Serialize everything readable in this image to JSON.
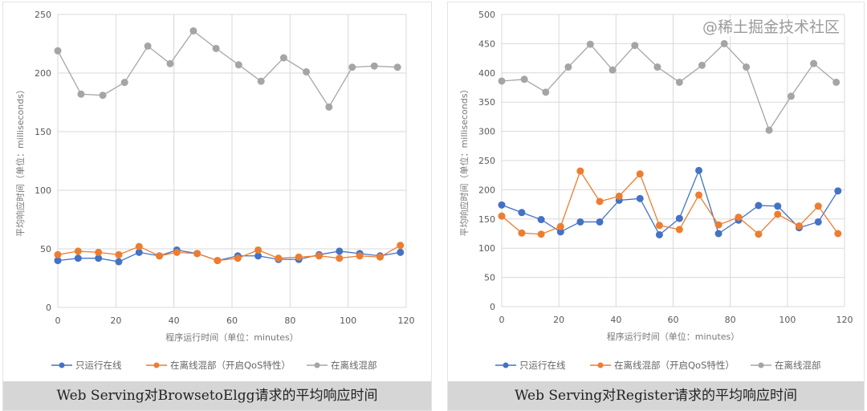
{
  "chart_data": [
    {
      "type": "line",
      "title": "Web Serving对BrowsetoElgg请求的平均响应时间",
      "xlabel": "程序运行时间（单位：minutes）",
      "ylabel": "平均响应时间（单位：milliseconds）",
      "xlim": [
        0,
        120
      ],
      "ylim": [
        0,
        250
      ],
      "xticks": [
        0,
        20,
        40,
        60,
        80,
        100,
        120
      ],
      "yticks": [
        0,
        50,
        100,
        150,
        200,
        250
      ],
      "grid": true,
      "legend": "bottom",
      "series": [
        {
          "name": "只运行在线",
          "color": "#4472c4",
          "x": [
            0,
            7,
            14,
            21,
            28,
            35,
            41,
            48,
            55,
            62,
            69,
            76,
            83,
            90,
            97,
            104,
            111,
            118
          ],
          "y": [
            40,
            42,
            42,
            39,
            47,
            44,
            49,
            46,
            40,
            44,
            44,
            41,
            41,
            45,
            48,
            46,
            44,
            47
          ]
        },
        {
          "name": "在离线混部（开启QoS特性）",
          "color": "#ed7d31",
          "x": [
            0,
            7,
            14,
            21,
            28,
            35,
            41,
            48,
            55,
            62,
            69,
            76,
            83,
            90,
            97,
            104,
            111,
            118
          ],
          "y": [
            45,
            48,
            47,
            45,
            52,
            44,
            47,
            46,
            40,
            42,
            49,
            42,
            43,
            44,
            42,
            44,
            43,
            53
          ]
        },
        {
          "name": "在离线混部",
          "color": "#a5a5a5",
          "x": [
            0,
            8,
            15.5,
            23,
            31,
            38.7,
            46.7,
            54.5,
            62.3,
            70,
            77.8,
            85.6,
            93.4,
            101.4,
            109,
            117
          ],
          "y": [
            219,
            182,
            181,
            192,
            223,
            208,
            236,
            221,
            207,
            193,
            213,
            201,
            171,
            205,
            206,
            205
          ]
        }
      ]
    },
    {
      "type": "line",
      "title": "Web Serving对Register请求的平均响应时间",
      "xlabel": "程序运行时间（单位：minutes）",
      "ylabel": "平均响应时间（单位：milliseconds）",
      "xlim": [
        0,
        120
      ],
      "ylim": [
        0,
        500
      ],
      "xticks": [
        0,
        20,
        40,
        60,
        80,
        100,
        120
      ],
      "yticks": [
        0,
        50,
        100,
        150,
        200,
        250,
        300,
        350,
        400,
        450,
        500
      ],
      "grid": true,
      "legend": "bottom",
      "series": [
        {
          "name": "只运行在线",
          "color": "#4472c4",
          "x": [
            0,
            7,
            13.8,
            20.6,
            27.5,
            34.3,
            41.1,
            48.4,
            55.2,
            62.2,
            69,
            75.9,
            82.9,
            89.9,
            96.6,
            104.1,
            110.8,
            117.7
          ],
          "y": [
            174,
            161,
            149,
            128,
            145,
            145,
            182,
            185,
            123,
            151,
            233,
            125,
            148,
            173,
            172,
            135,
            145,
            198
          ]
        },
        {
          "name": "在离线混部（开启QoS特性）",
          "color": "#ed7d31",
          "x": [
            0,
            7,
            13.8,
            20.6,
            27.5,
            34.3,
            41.1,
            48.4,
            55.2,
            62.2,
            69,
            75.9,
            82.9,
            89.9,
            96.6,
            104.1,
            110.8,
            117.7
          ],
          "y": [
            155,
            126,
            124,
            137,
            232,
            180,
            189,
            227,
            139,
            132,
            191,
            140,
            153,
            124,
            158,
            138,
            172,
            125
          ]
        },
        {
          "name": "在离线混部",
          "color": "#a5a5a5",
          "x": [
            0,
            7.9,
            15.4,
            23.3,
            31,
            38.8,
            46.6,
            54.5,
            62.2,
            70.1,
            77.9,
            85.6,
            93.6,
            101.3,
            109.2,
            117.1
          ],
          "y": [
            386,
            389,
            367,
            410,
            449,
            405,
            447,
            410,
            384,
            413,
            450,
            410,
            302,
            360,
            416,
            384
          ]
        }
      ]
    }
  ],
  "watermark": "@稀土掘金技术社区"
}
